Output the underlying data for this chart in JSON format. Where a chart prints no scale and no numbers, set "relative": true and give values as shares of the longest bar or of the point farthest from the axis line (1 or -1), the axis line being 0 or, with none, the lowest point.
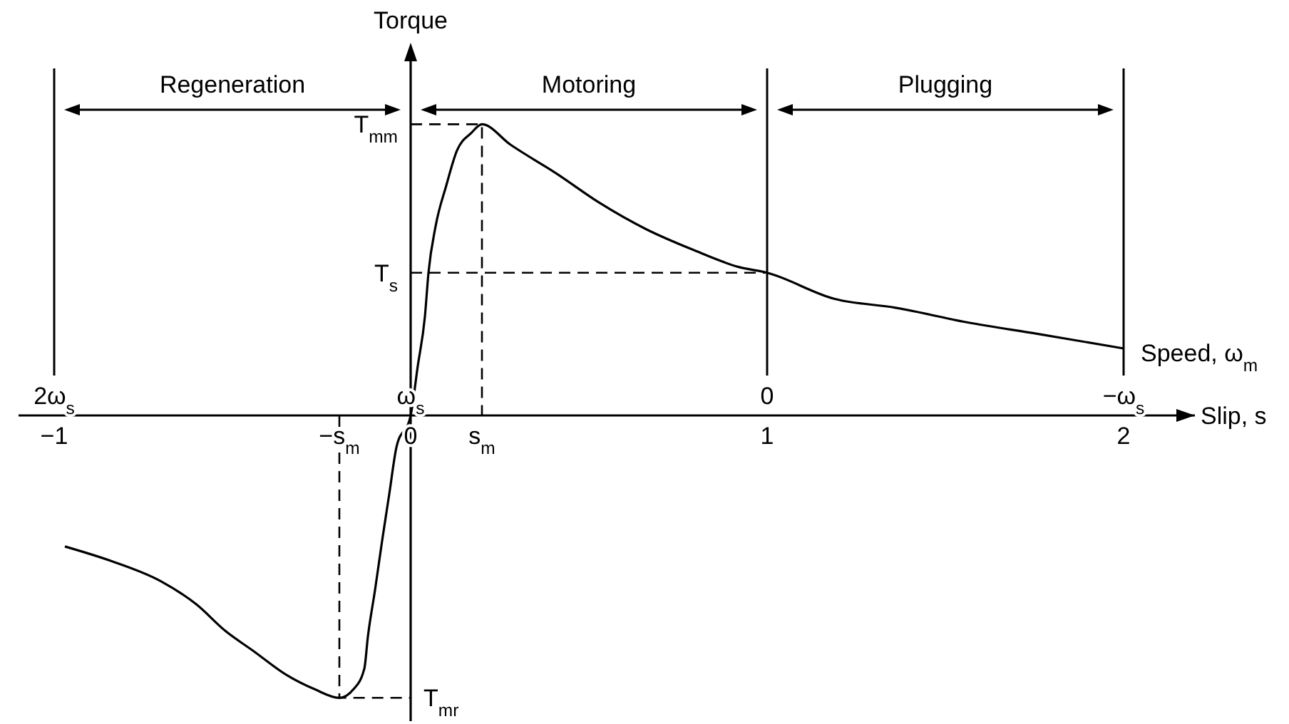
{
  "chart_data": {
    "type": "line",
    "xlabel": "Slip, s",
    "ylabel": "Torque",
    "x2label": "Speed, ω$_{m}$",
    "relative": true,
    "xlim": [
      -1.1,
      2.2
    ],
    "xticks": [
      -1,
      {
        "value": -0.2,
        "label": "−s$_{m}$"
      },
      0,
      {
        "value": 0.2,
        "label": "s$_{m}$"
      },
      1,
      2
    ],
    "x2lim": [
      2.1,
      -1.2
    ],
    "x2ticks": [
      {
        "value": 2,
        "label": "2ω$_{s}$"
      },
      {
        "value": 1,
        "label": "ω$_{s}$"
      },
      0,
      {
        "value": -1,
        "label": "−ω$_{s}$"
      }
    ],
    "series": [
      {
        "color": "#000000",
        "x": [
          -0.97,
          -0.84,
          -0.7,
          -0.6,
          -0.52,
          -0.44,
          -0.35,
          -0.27,
          -0.2,
          -0.16,
          -0.13,
          -0.12,
          -0.1,
          -0.08,
          -0.06,
          -0.04,
          0,
          0.02,
          0.04,
          0.05,
          0.07,
          0.1,
          0.13,
          0.17,
          0.2,
          0.28,
          0.41,
          0.53,
          0.66,
          0.79,
          0.92,
          1,
          1.19,
          1.36,
          1.56,
          1.76,
          2
        ],
        "values": [
          -0.45,
          -0.5,
          -0.57,
          -0.65,
          -0.74,
          -0.81,
          -0.89,
          -0.94,
          -0.97,
          -0.94,
          -0.87,
          -0.76,
          -0.6,
          -0.43,
          -0.27,
          -0.11,
          0,
          0.17,
          0.34,
          0.49,
          0.65,
          0.79,
          0.91,
          0.97,
          1,
          0.93,
          0.83,
          0.73,
          0.64,
          0.57,
          0.51,
          0.49,
          0.4,
          0.37,
          0.32,
          0.28,
          0.23
        ]
      },
      {
        "color": "#000000",
        "line_style": "dashed",
        "x": [
          0,
          0.2,
          0.2
        ],
        "values": [
          1,
          1,
          0
        ]
      },
      {
        "color": "#000000",
        "line_style": "dashed",
        "x": [
          0,
          1
        ],
        "values": [
          0.49,
          0.49
        ]
      },
      {
        "color": "#000000",
        "line_style": "dashed",
        "x": [
          -0.2,
          -0.2,
          0
        ],
        "values": [
          0,
          -0.97,
          -0.97
        ]
      }
    ],
    "annotations": [
      "Regeneration",
      "Motoring",
      "Plugging",
      "T$_{mm}$",
      "T$_{s}$",
      "T$_{mr}$"
    ],
    "ref_lines": [
      {
        "axis": "x",
        "value": -1,
        "color": "#000000"
      },
      {
        "axis": "x",
        "value": 1,
        "color": "#000000"
      },
      {
        "axis": "x",
        "value": 2,
        "color": "#000000"
      }
    ]
  }
}
